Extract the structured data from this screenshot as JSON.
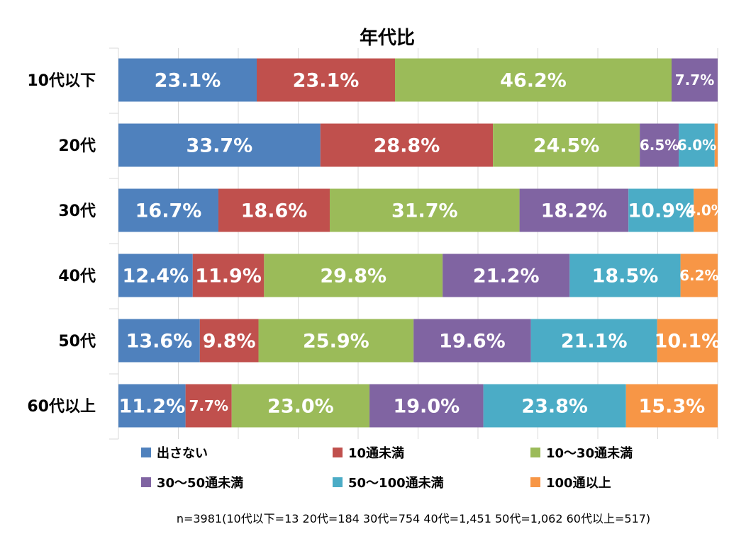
{
  "chart_data": {
    "type": "bar",
    "orientation": "horizontal",
    "stacked": "percent",
    "title": "年代比",
    "categories": [
      "10代以下",
      "20代",
      "30代",
      "40代",
      "50代",
      "60代以上"
    ],
    "series": [
      {
        "name": "出さない",
        "color": "#4f81bd",
        "values": [
          23.1,
          33.7,
          16.7,
          12.4,
          13.6,
          11.2
        ],
        "labels": [
          "23.1%",
          "33.7%",
          "16.7%",
          "12.4%",
          "13.6%",
          "11.2%"
        ]
      },
      {
        "name": "10通未満",
        "color": "#c0504d",
        "values": [
          23.1,
          28.8,
          18.6,
          11.9,
          9.8,
          7.7
        ],
        "labels": [
          "23.1%",
          "28.8%",
          "18.6%",
          "11.9%",
          "9.8%",
          "7.7%"
        ]
      },
      {
        "name": "10～30通未満",
        "color": "#9bbb59",
        "values": [
          46.2,
          24.5,
          31.7,
          29.8,
          25.9,
          23.0
        ],
        "labels": [
          "46.2%",
          "24.5%",
          "31.7%",
          "29.8%",
          "25.9%",
          "23.0%"
        ]
      },
      {
        "name": "30～50通未満",
        "color": "#8064a2",
        "values": [
          7.7,
          6.5,
          18.2,
          21.2,
          19.6,
          19.0
        ],
        "labels": [
          "7.7%",
          "6.5%",
          "18.2%",
          "21.2%",
          "19.6%",
          "19.0%"
        ]
      },
      {
        "name": "50～100通未満",
        "color": "#4bacc6",
        "values": [
          0,
          6.0,
          10.9,
          18.5,
          21.1,
          23.8
        ],
        "labels": [
          "",
          "6.0%",
          "10.9%",
          "18.5%",
          "21.1%",
          "23.8%"
        ]
      },
      {
        "name": "100通以上",
        "color": "#f79646",
        "values": [
          0,
          0.5,
          4.0,
          6.2,
          10.1,
          15.3
        ],
        "labels": [
          "",
          "",
          "4.0%",
          "6.2%",
          "10.1%",
          "15.3%"
        ]
      }
    ],
    "xlim": [
      0,
      100
    ],
    "grid": true,
    "legend_position": "bottom",
    "note": "n=3981(10代以下=13  20代=184  30代=754  40代=1,451  50代=1,062  60代以上=517)"
  }
}
